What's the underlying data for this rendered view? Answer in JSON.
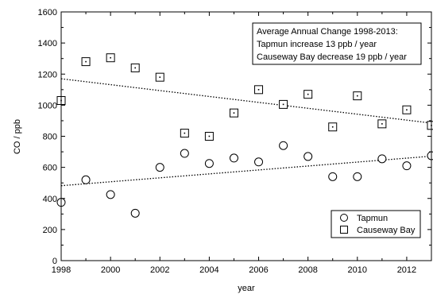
{
  "chart_data": {
    "type": "scatter",
    "xlabel": "year",
    "ylabel": "CO / ppb",
    "xlim": [
      1998,
      2013
    ],
    "ylim": [
      0,
      1600
    ],
    "xticks": [
      1998,
      2000,
      2002,
      2004,
      2006,
      2008,
      2010,
      2012
    ],
    "yticks": [
      0,
      200,
      400,
      600,
      800,
      1000,
      1200,
      1400,
      1600
    ],
    "grid": false,
    "legend_position": "bottom-right",
    "annotation": [
      "Average Annual Change 1998-2013:",
      "Tapmun increase 13 ppb / year",
      "Causeway Bay decrease 19 ppb / year"
    ],
    "series": [
      {
        "name": "Tapmun",
        "marker": "circle",
        "x": [
          1998,
          1999,
          2000,
          2001,
          2002,
          2003,
          2004,
          2005,
          2006,
          2007,
          2008,
          2009,
          2010,
          2011,
          2012,
          2013
        ],
        "y": [
          375,
          520,
          425,
          305,
          600,
          690,
          625,
          660,
          635,
          740,
          670,
          540,
          540,
          655,
          610,
          675
        ]
      },
      {
        "name": "Causeway Bay",
        "marker": "square",
        "x": [
          1998,
          1999,
          2000,
          2001,
          2002,
          2003,
          2004,
          2005,
          2006,
          2007,
          2008,
          2009,
          2010,
          2011,
          2012,
          2013
        ],
        "y": [
          1030,
          1280,
          1305,
          1240,
          1180,
          820,
          800,
          950,
          1100,
          1005,
          1070,
          860,
          1060,
          880,
          970,
          870
        ]
      }
    ],
    "trendlines": [
      {
        "series": "Tapmun",
        "x": [
          1998,
          2013
        ],
        "y": [
          482,
          672
        ]
      },
      {
        "series": "Causeway Bay",
        "x": [
          1998,
          2013
        ],
        "y": [
          1170,
          885
        ]
      }
    ]
  }
}
